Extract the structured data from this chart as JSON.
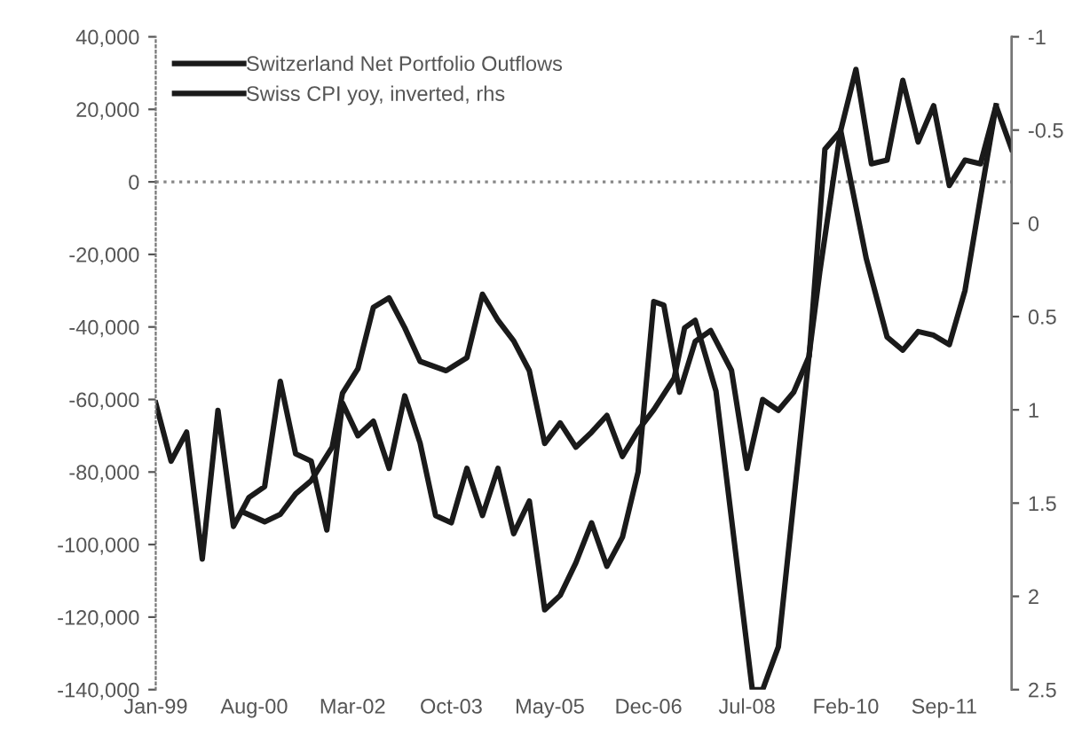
{
  "chart_data": {
    "type": "line",
    "series": [
      {
        "name": "Switzerland Net Portfolio Outflows",
        "color": "#1a1a1a",
        "x": [
          "1999-01",
          "1999-04",
          "1999-07",
          "1999-10",
          "2000-01",
          "2000-04",
          "2000-07",
          "2000-10",
          "2001-01",
          "2001-04",
          "2001-07",
          "2001-10",
          "2002-01",
          "2002-04",
          "2002-07",
          "2002-10",
          "2003-01",
          "2003-04",
          "2003-07",
          "2003-10",
          "2004-01",
          "2004-04",
          "2004-07",
          "2004-10",
          "2005-01",
          "2005-04",
          "2005-07",
          "2005-10",
          "2006-01",
          "2006-04",
          "2006-07",
          "2006-10",
          "2007-01",
          "2007-03",
          "2007-06",
          "2007-09",
          "2007-12",
          "2008-04",
          "2008-07",
          "2008-10",
          "2009-01",
          "2009-04",
          "2009-07",
          "2009-10",
          "2010-01",
          "2010-04",
          "2010-07",
          "2010-10",
          "2011-01",
          "2011-04",
          "2011-07",
          "2011-10",
          "2012-01",
          "2012-04",
          "2012-07",
          "2012-10"
        ],
        "values": [
          -61000,
          -77000,
          -69000,
          -104000,
          -63000,
          -95000,
          -87000,
          -84000,
          -55000,
          -75000,
          -77000,
          -96000,
          -61000,
          -70000,
          -66000,
          -79000,
          -59000,
          -72000,
          -92000,
          -94000,
          -79000,
          -92000,
          -79000,
          -97000,
          -88000,
          -118000,
          -114000,
          -105000,
          -94000,
          -106000,
          -98000,
          -80000,
          -33000,
          -34000,
          -58000,
          -44000,
          -41000,
          -52000,
          -79000,
          -60000,
          -63000,
          -58000,
          -48000,
          9000,
          14000,
          31000,
          5000,
          6000,
          28000,
          11000,
          21000,
          -1000,
          6000,
          5000,
          21000,
          9000
        ]
      },
      {
        "name": "Swiss CPI yoy, inverted, rhs",
        "color": "#1a1a1a",
        "axis": "y2",
        "x": [
          "2000-06",
          "2000-10",
          "2001-01",
          "2001-04",
          "2001-07",
          "2001-11",
          "2002-01",
          "2002-04",
          "2002-07",
          "2002-10",
          "2003-01",
          "2003-04",
          "2003-09",
          "2004-01",
          "2004-04",
          "2004-07",
          "2004-10",
          "2005-01",
          "2005-04",
          "2005-07",
          "2005-10",
          "2006-01",
          "2006-04",
          "2006-07",
          "2006-10",
          "2007-01",
          "2007-05",
          "2007-07",
          "2007-09",
          "2008-01",
          "2008-08",
          "2008-10",
          "2009-01",
          "2009-07",
          "2009-09",
          "2010-01",
          "2010-06",
          "2010-10",
          "2011-01",
          "2011-04",
          "2011-07",
          "2011-10",
          "2012-01",
          "2012-04",
          "2012-07"
        ],
        "values": [
          1.55,
          1.6,
          1.56,
          1.45,
          1.38,
          1.2,
          0.91,
          0.78,
          0.45,
          0.4,
          0.56,
          0.74,
          0.79,
          0.72,
          0.38,
          0.52,
          0.63,
          0.79,
          1.18,
          1.07,
          1.2,
          1.12,
          1.03,
          1.25,
          1.11,
          1.0,
          0.83,
          0.56,
          0.52,
          0.9,
          2.5,
          2.5,
          2.27,
          0.7,
          0.26,
          -0.5,
          0.19,
          0.61,
          0.68,
          0.58,
          0.6,
          0.65,
          0.36,
          -0.14,
          -0.63
        ]
      }
    ],
    "xlim": [
      "1999-01",
      "2012-10"
    ],
    "xticks": [
      {
        "value": "1999-01",
        "label": "Jan-99"
      },
      {
        "value": "2000-08",
        "label": "Aug-00"
      },
      {
        "value": "2002-03",
        "label": "Mar-02"
      },
      {
        "value": "2003-10",
        "label": "Oct-03"
      },
      {
        "value": "2005-05",
        "label": "May-05"
      },
      {
        "value": "2006-12",
        "label": "Dec-06"
      },
      {
        "value": "2008-07",
        "label": "Jul-08"
      },
      {
        "value": "2010-02",
        "label": "Feb-10"
      },
      {
        "value": "2011-09",
        "label": "Sep-11"
      }
    ],
    "ylim": [
      -140000,
      40000
    ],
    "yticks": [
      {
        "value": -140000,
        "label": "-140,000"
      },
      {
        "value": -120000,
        "label": "-120,000"
      },
      {
        "value": -100000,
        "label": "-100,000"
      },
      {
        "value": -80000,
        "label": "-80,000"
      },
      {
        "value": -60000,
        "label": "-60,000"
      },
      {
        "value": -40000,
        "label": "-40,000"
      },
      {
        "value": -20000,
        "label": "-20,000"
      },
      {
        "value": 0,
        "label": "0"
      },
      {
        "value": 20000,
        "label": "20,000"
      },
      {
        "value": 40000,
        "label": "40,000"
      }
    ],
    "y2lim": [
      2.5,
      -1
    ],
    "y2ticks": [
      2.5,
      2,
      1.5,
      1,
      0.5,
      0,
      -0.5,
      -1
    ],
    "ref_lines": [
      {
        "axis": "y",
        "value": 0,
        "line_style": "dotted",
        "color": "#888888"
      }
    ],
    "legend": "top left",
    "grid": false,
    "line_style": "solid",
    "marker": "none"
  }
}
